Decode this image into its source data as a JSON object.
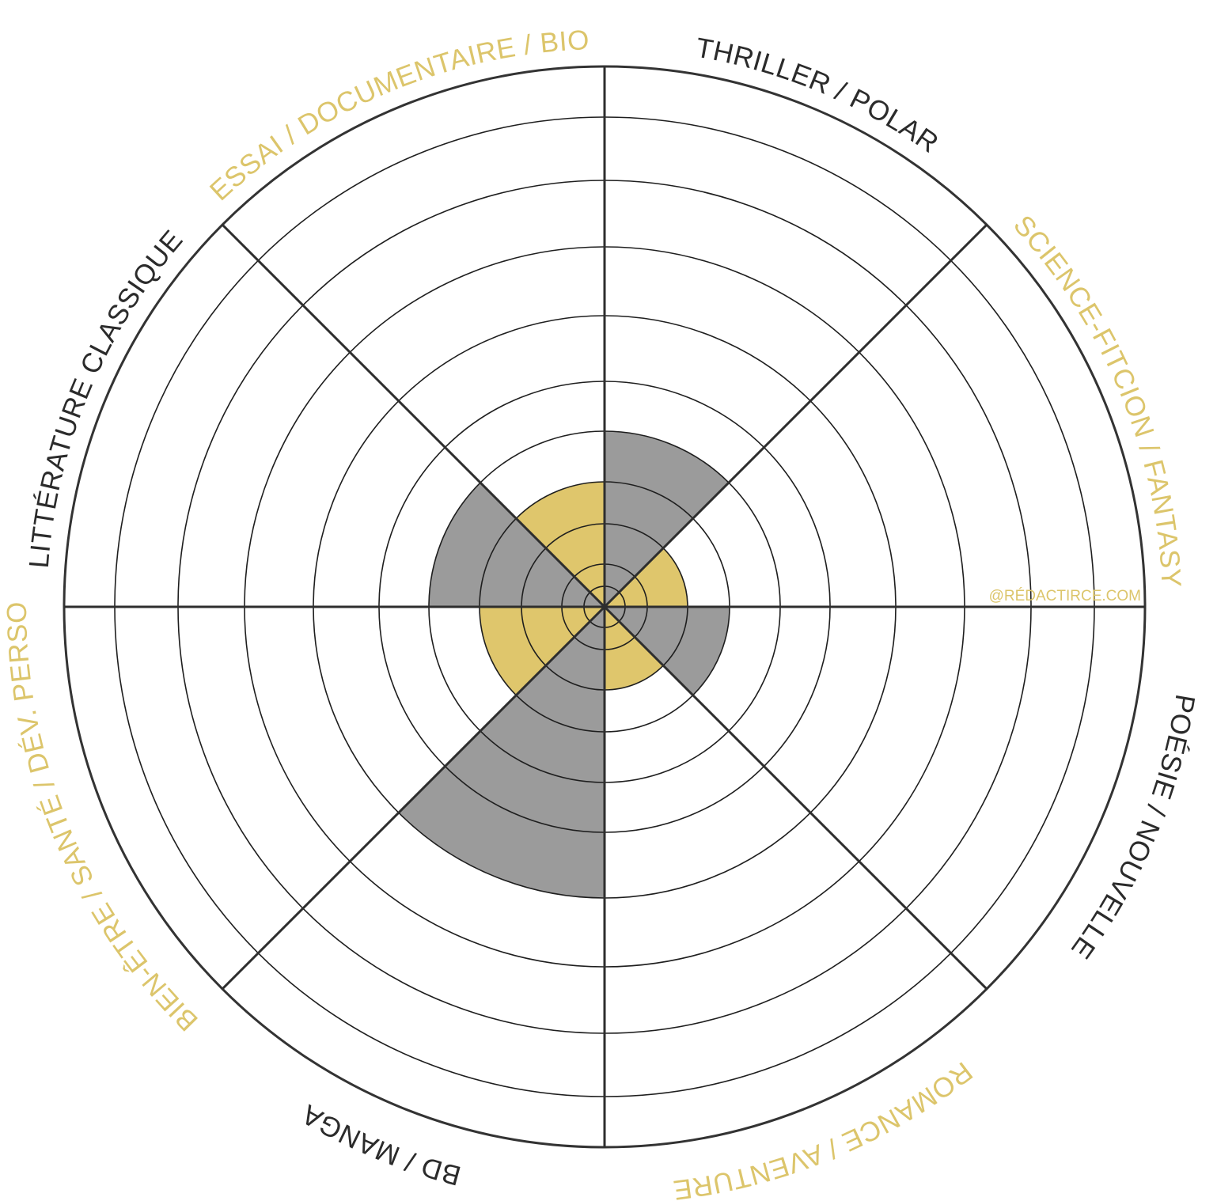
{
  "chart_data": {
    "type": "polar-area",
    "title": "",
    "scale_max": 9,
    "rings": 9,
    "categories": [
      {
        "label": "THRILLER / POLAR",
        "value": 3,
        "color": "#9b9b9b",
        "label_color": "#2b2b2b"
      },
      {
        "label": "SCIENCE-FITCION / FANTASY",
        "value": 1.5,
        "color": "#dfc66c",
        "label_color": "#dcc56b"
      },
      {
        "label": "POÉSIE / NOUVELLE",
        "value": 2,
        "color": "#9b9b9b",
        "label_color": "#2b2b2b"
      },
      {
        "label": "ROMANCE / AVENTURE",
        "value": 1.5,
        "color": "#dfc66c",
        "label_color": "#dcc56b"
      },
      {
        "label": "BD / MANGA",
        "value": 5,
        "color": "#9b9b9b",
        "label_color": "#2b2b2b"
      },
      {
        "label": "BIEN-ÊTRE / SANTÉ / DÉV. PERSO",
        "value": 2,
        "color": "#dfc66c",
        "label_color": "#dcc56b"
      },
      {
        "label": "LITTÉRATURE CLASSIQUE",
        "value": 3,
        "color": "#9b9b9b",
        "label_color": "#2b2b2b"
      },
      {
        "label": "ESSAI / DOCUMENTAIRE / BIO",
        "value": 2,
        "color": "#dfc66c",
        "label_color": "#dcc56b"
      }
    ]
  },
  "watermark": {
    "text": "@RÉDACTIRCE.COM",
    "color": "#dcc56b"
  }
}
